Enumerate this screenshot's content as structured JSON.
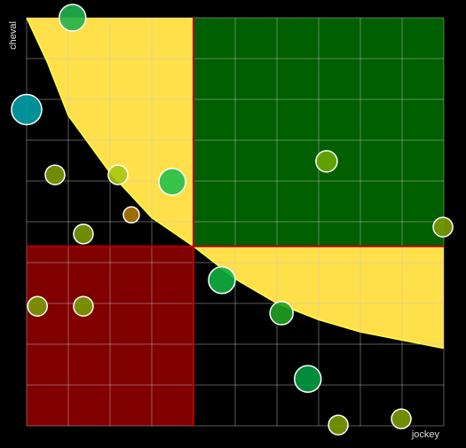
{
  "chart_data": {
    "type": "bubble",
    "x_label": "jockey",
    "y_label": "cheval",
    "xlim": [
      0,
      10
    ],
    "ylim": [
      0,
      10
    ],
    "xticks": [
      0,
      1,
      2,
      3,
      4,
      5,
      6,
      7,
      8,
      9,
      10
    ],
    "yticks": [
      0,
      1,
      2,
      3,
      4,
      5,
      6,
      7,
      8,
      9,
      10
    ],
    "grid": true,
    "x_threshold": 4,
    "y_threshold": 4.4,
    "good_color": "#005f00",
    "bad_color": "#800000",
    "zone_color": "#ffe04a",
    "threshold_color": "#b00000",
    "curve": {
      "x": [
        0,
        0.5,
        1,
        2,
        3,
        4,
        5,
        6,
        7,
        8,
        9,
        10
      ],
      "y": [
        10,
        8.9,
        7.6,
        6.2,
        5.1,
        4.4,
        3.6,
        3.0,
        2.6,
        2.3,
        2.1,
        1.9
      ]
    },
    "series": [
      {
        "x": [
          1.1,
          0,
          0.68,
          2.19,
          3.49,
          2.51,
          1.36,
          7.19,
          9.98,
          4.68,
          0.26,
          1.36,
          6.11,
          6.74,
          7.47,
          8.98
        ],
        "values": [
          10,
          7.75,
          6.15,
          6.15,
          5.98,
          5.17,
          4.7,
          6.48,
          4.87,
          3.57,
          2.93,
          2.93,
          2.76,
          1.15,
          0.02,
          0.17
        ],
        "sizes": [
          15,
          17,
          11,
          11,
          15,
          9,
          11,
          12,
          11,
          15,
          11,
          11,
          13,
          15,
          11,
          11
        ],
        "colors": [
          "#22b14c",
          "#00a0a8",
          "#7a9a01",
          "#a8c810",
          "#22c04a",
          "#b07800",
          "#7a9a01",
          "#6aa800",
          "#7a9a01",
          "#10b040",
          "#7a9a01",
          "#7a9a01",
          "#20a020",
          "#009a40",
          "#7a9a01",
          "#7a9a01"
        ]
      }
    ]
  }
}
